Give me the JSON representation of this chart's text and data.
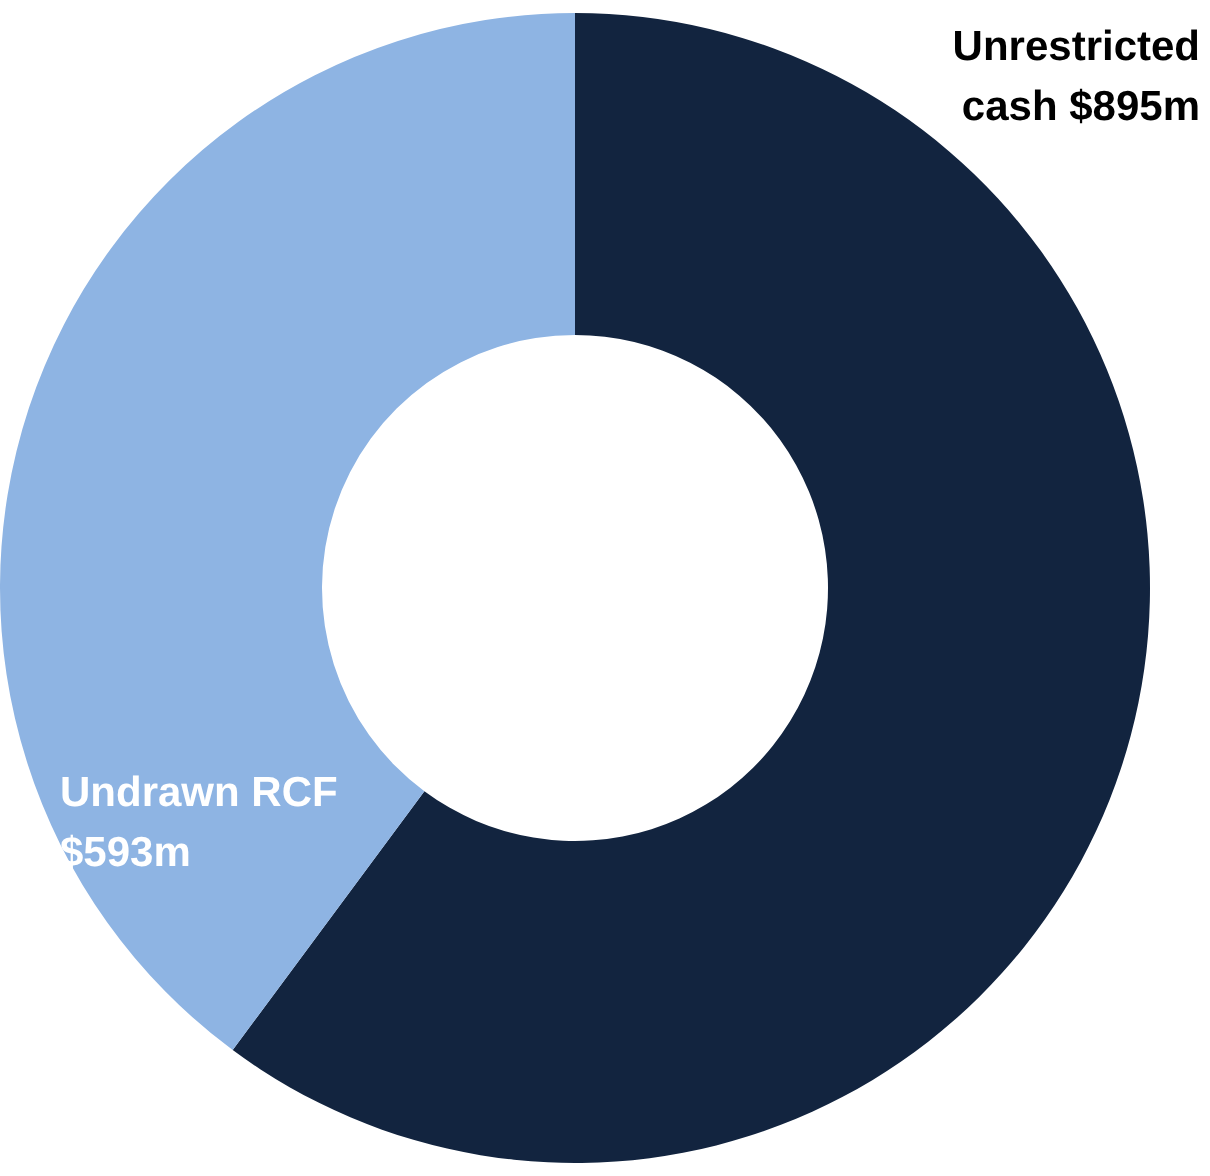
{
  "chart_data": {
    "type": "donut",
    "categories": [
      "Unrestricted cash",
      "Undrawn RCF"
    ],
    "values": [
      895,
      593
    ],
    "colors": [
      "#12243f",
      "#8eb4e3"
    ],
    "value_labels": [
      "$895m",
      "$593m"
    ],
    "legend": false
  }
}
